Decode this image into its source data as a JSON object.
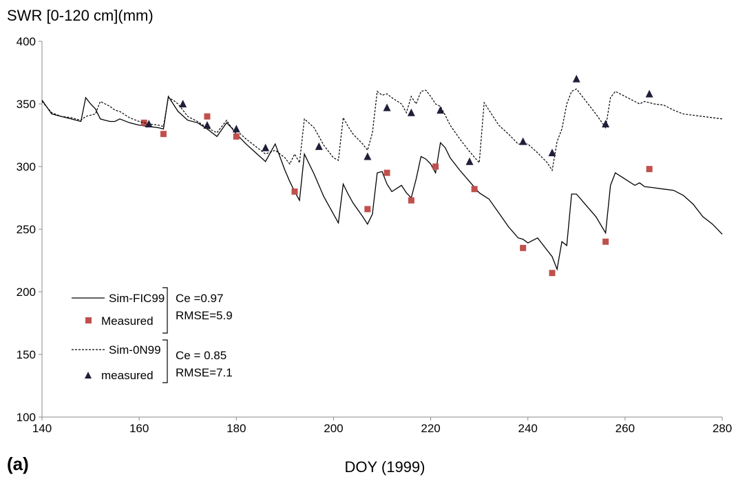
{
  "chart_data": {
    "type": "line",
    "title": "SWR [0-120 cm](mm)",
    "xlabel": "DOY (1999)",
    "panel_label": "(a)",
    "xlim": [
      140,
      280
    ],
    "ylim": [
      100,
      400
    ],
    "xticks": [
      140,
      160,
      180,
      200,
      220,
      240,
      260,
      280
    ],
    "yticks": [
      100,
      150,
      200,
      250,
      300,
      350,
      400
    ],
    "grid": false,
    "legend_position": "bottom-left",
    "series": [
      {
        "name": "Sim-FIC99",
        "style": "solid",
        "color": "#000000",
        "x": [
          140,
          142,
          144,
          146,
          148,
          149,
          150,
          151,
          152,
          153,
          154,
          155,
          156,
          158,
          160,
          162,
          164,
          165,
          166,
          167,
          168,
          170,
          172,
          174,
          176,
          178,
          179,
          180,
          182,
          184,
          186,
          188,
          190,
          191,
          192,
          193,
          194,
          196,
          198,
          200,
          201,
          202,
          203,
          204,
          206,
          207,
          208,
          209,
          210,
          211,
          212,
          214,
          215,
          216,
          217,
          218,
          219,
          220,
          221,
          222,
          223,
          224,
          226,
          228,
          230,
          232,
          234,
          236,
          238,
          239,
          240,
          242,
          244,
          245,
          246,
          247,
          248,
          249,
          250,
          252,
          254,
          256,
          257,
          258,
          260,
          262,
          263,
          264,
          266,
          268,
          270,
          272,
          274,
          276,
          278,
          280
        ],
        "y": [
          353,
          342,
          340,
          338,
          336,
          355,
          350,
          346,
          338,
          337,
          336,
          336,
          338,
          335,
          333,
          332,
          331,
          330,
          356,
          350,
          344,
          337,
          335,
          330,
          324,
          335,
          331,
          326,
          318,
          311,
          304,
          318,
          297,
          288,
          280,
          273,
          310,
          294,
          276,
          262,
          255,
          286,
          278,
          271,
          260,
          254,
          262,
          295,
          296,
          286,
          280,
          285,
          279,
          275,
          290,
          308,
          306,
          302,
          295,
          319,
          315,
          307,
          297,
          288,
          279,
          274,
          263,
          252,
          243,
          242,
          239,
          243,
          233,
          228,
          218,
          240,
          237,
          278,
          278,
          269,
          260,
          247,
          285,
          295,
          290,
          285,
          287,
          284,
          283,
          282,
          281,
          277,
          270,
          260,
          254,
          246
        ]
      },
      {
        "name": "Measured",
        "style": "square-marker",
        "color": "#c0504d",
        "x": [
          161,
          165,
          174,
          180,
          192,
          207,
          211,
          216,
          221,
          229,
          239,
          245,
          256,
          265
        ],
        "y": [
          335,
          326,
          340,
          324,
          280,
          266,
          295,
          273,
          300,
          282,
          235,
          215,
          240,
          298
        ]
      },
      {
        "name": "Sim-0N99",
        "style": "dashed",
        "color": "#000000",
        "x": [
          140,
          142,
          144,
          146,
          148,
          149,
          150,
          151,
          152,
          153,
          154,
          155,
          156,
          158,
          160,
          162,
          164,
          165,
          166,
          167,
          168,
          170,
          172,
          174,
          176,
          178,
          179,
          180,
          182,
          184,
          186,
          188,
          190,
          191,
          192,
          193,
          194,
          196,
          198,
          200,
          201,
          202,
          203,
          204,
          206,
          207,
          208,
          209,
          210,
          211,
          212,
          214,
          215,
          216,
          217,
          218,
          219,
          220,
          221,
          222,
          223,
          224,
          226,
          228,
          230,
          231,
          232,
          234,
          236,
          238,
          239,
          240,
          242,
          244,
          245,
          246,
          247,
          248,
          249,
          250,
          252,
          254,
          256,
          257,
          258,
          260,
          262,
          263,
          264,
          266,
          268,
          270,
          272,
          274,
          276,
          278,
          280
        ],
        "y": [
          352,
          343,
          340,
          339,
          337,
          340,
          341,
          342,
          352,
          350,
          348,
          345,
          344,
          339,
          336,
          334,
          333,
          332,
          355,
          353,
          350,
          340,
          336,
          331,
          327,
          337,
          331,
          329,
          322,
          316,
          310,
          313,
          307,
          302,
          310,
          303,
          338,
          331,
          317,
          307,
          305,
          339,
          332,
          326,
          318,
          313,
          327,
          360,
          357,
          358,
          355,
          350,
          343,
          356,
          350,
          360,
          361,
          356,
          350,
          348,
          341,
          333,
          322,
          312,
          303,
          351,
          345,
          333,
          326,
          318,
          318,
          318,
          311,
          303,
          297,
          320,
          330,
          350,
          360,
          362,
          352,
          342,
          331,
          355,
          360,
          356,
          352,
          350,
          352,
          350,
          349,
          345,
          342,
          341,
          340,
          339,
          338
        ]
      },
      {
        "name": "measured",
        "style": "triangle-marker",
        "color": "#1f1f3a",
        "x": [
          162,
          169,
          174,
          180,
          186,
          197,
          207,
          211,
          216,
          222,
          228,
          239,
          245,
          250,
          256,
          265
        ],
        "y": [
          334,
          350,
          333,
          330,
          315,
          316,
          308,
          347,
          343,
          345,
          304,
          320,
          311,
          370,
          334,
          358
        ]
      }
    ],
    "annotations": [
      {
        "series": [
          "Sim-FIC99",
          "Measured"
        ],
        "ce": "Ce =0.97",
        "rmse": "RMSE=5.9"
      },
      {
        "series": [
          "Sim-0N99",
          "measured"
        ],
        "ce": "Ce = 0.85",
        "rmse": "RMSE=7.1"
      }
    ]
  }
}
